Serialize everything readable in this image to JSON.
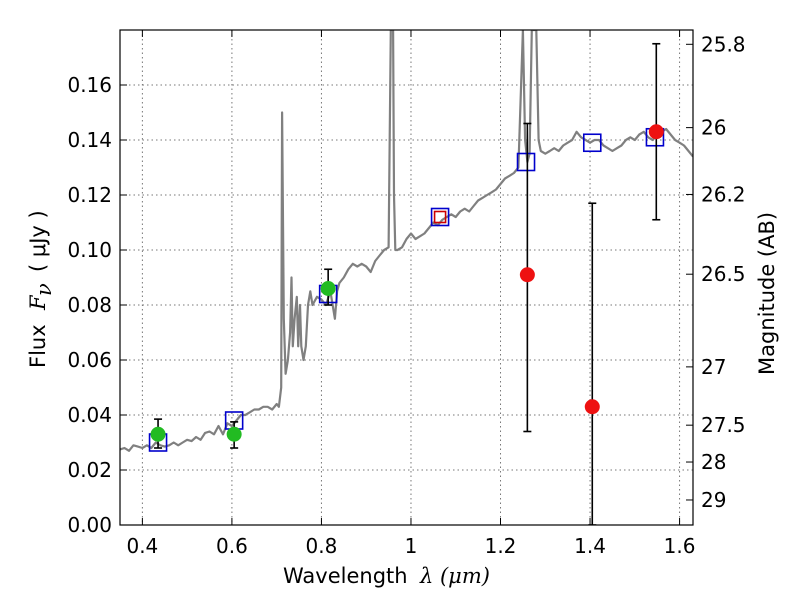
{
  "chart_data": {
    "type": "scatter",
    "xlabel": "Wavelength",
    "xlabel_math": "λ (μm)",
    "ylabel": "Flux",
    "ylabel_math": "F",
    "ylabel_sub": "ν",
    "ylabel_unit": "( μJy )",
    "y2label": "Magnitude (AB)",
    "xlim": [
      0.35,
      1.63
    ],
    "ylim": [
      0.0,
      0.18
    ],
    "grid": true,
    "xticks": [
      0.4,
      0.6,
      0.8,
      1.0,
      1.2,
      1.4,
      1.6
    ],
    "xtick_labels": [
      "0.4",
      "0.6",
      "0.8",
      "1",
      "1.2",
      "1.4",
      "1.6"
    ],
    "yticks": [
      0.0,
      0.02,
      0.04,
      0.06,
      0.08,
      0.1,
      0.12,
      0.14,
      0.16
    ],
    "ytick_labels": [
      "0.00",
      "0.02",
      "0.04",
      "0.06",
      "0.08",
      "0.10",
      "0.12",
      "0.14",
      "0.16"
    ],
    "mag_ticks": [
      {
        "label": "25.8",
        "flux": 0.1748
      },
      {
        "label": "26",
        "flux": 0.1445
      },
      {
        "label": "26.2",
        "flux": 0.1202
      },
      {
        "label": "26.5",
        "flux": 0.0912
      },
      {
        "label": "27",
        "flux": 0.0575
      },
      {
        "label": "27.5",
        "flux": 0.0363
      },
      {
        "label": "28",
        "flux": 0.0229
      },
      {
        "label": "29",
        "flux": 0.0091
      }
    ],
    "colors": {
      "spectrum": "#808080",
      "model_box": "#0000cc",
      "model_box_red": "#cc0000",
      "ground": "#22bb22",
      "space": "#ee1111",
      "errorbar": "#000000",
      "grid": "#777777"
    },
    "series": [
      {
        "kind": "spectrum",
        "points": [
          [
            0.35,
            0.0275
          ],
          [
            0.36,
            0.028
          ],
          [
            0.37,
            0.027
          ],
          [
            0.38,
            0.029
          ],
          [
            0.39,
            0.0285
          ],
          [
            0.4,
            0.028
          ],
          [
            0.41,
            0.029
          ],
          [
            0.42,
            0.028
          ],
          [
            0.43,
            0.03
          ],
          [
            0.44,
            0.029
          ],
          [
            0.45,
            0.0285
          ],
          [
            0.46,
            0.029
          ],
          [
            0.47,
            0.03
          ],
          [
            0.48,
            0.029
          ],
          [
            0.49,
            0.03
          ],
          [
            0.5,
            0.031
          ],
          [
            0.51,
            0.0305
          ],
          [
            0.52,
            0.032
          ],
          [
            0.53,
            0.031
          ],
          [
            0.54,
            0.0335
          ],
          [
            0.55,
            0.034
          ],
          [
            0.56,
            0.033
          ],
          [
            0.57,
            0.036
          ],
          [
            0.58,
            0.033
          ],
          [
            0.59,
            0.037
          ],
          [
            0.6,
            0.036
          ],
          [
            0.61,
            0.038
          ],
          [
            0.62,
            0.04
          ],
          [
            0.63,
            0.04
          ],
          [
            0.64,
            0.041
          ],
          [
            0.65,
            0.042
          ],
          [
            0.66,
            0.042
          ],
          [
            0.67,
            0.043
          ],
          [
            0.68,
            0.043
          ],
          [
            0.69,
            0.042
          ],
          [
            0.7,
            0.044
          ],
          [
            0.705,
            0.043
          ],
          [
            0.71,
            0.05
          ],
          [
            0.712,
            0.15
          ],
          [
            0.716,
            0.075
          ],
          [
            0.72,
            0.055
          ],
          [
            0.725,
            0.06
          ],
          [
            0.73,
            0.07
          ],
          [
            0.733,
            0.09
          ],
          [
            0.736,
            0.065
          ],
          [
            0.74,
            0.075
          ],
          [
            0.745,
            0.083
          ],
          [
            0.748,
            0.065
          ],
          [
            0.752,
            0.08
          ],
          [
            0.755,
            0.065
          ],
          [
            0.76,
            0.06
          ],
          [
            0.765,
            0.065
          ],
          [
            0.77,
            0.08
          ],
          [
            0.775,
            0.085
          ],
          [
            0.78,
            0.08
          ],
          [
            0.79,
            0.083
          ],
          [
            0.8,
            0.082
          ],
          [
            0.81,
            0.08
          ],
          [
            0.82,
            0.085
          ],
          [
            0.83,
            0.075
          ],
          [
            0.835,
            0.085
          ],
          [
            0.84,
            0.088
          ],
          [
            0.85,
            0.09
          ],
          [
            0.86,
            0.093
          ],
          [
            0.87,
            0.095
          ],
          [
            0.88,
            0.094
          ],
          [
            0.89,
            0.095
          ],
          [
            0.9,
            0.094
          ],
          [
            0.91,
            0.092
          ],
          [
            0.92,
            0.096
          ],
          [
            0.93,
            0.098
          ],
          [
            0.94,
            0.1
          ],
          [
            0.95,
            0.101
          ],
          [
            0.955,
            0.18
          ],
          [
            0.96,
            0.18
          ],
          [
            0.962,
            0.12
          ],
          [
            0.965,
            0.1
          ],
          [
            0.97,
            0.1
          ],
          [
            0.98,
            0.101
          ],
          [
            0.99,
            0.104
          ],
          [
            1.0,
            0.106
          ],
          [
            1.01,
            0.104
          ],
          [
            1.02,
            0.105
          ],
          [
            1.03,
            0.106
          ],
          [
            1.04,
            0.108
          ],
          [
            1.05,
            0.11
          ],
          [
            1.06,
            0.109
          ],
          [
            1.07,
            0.111
          ],
          [
            1.08,
            0.112
          ],
          [
            1.09,
            0.113
          ],
          [
            1.1,
            0.112
          ],
          [
            1.11,
            0.114
          ],
          [
            1.12,
            0.115
          ],
          [
            1.13,
            0.114
          ],
          [
            1.14,
            0.116
          ],
          [
            1.15,
            0.118
          ],
          [
            1.16,
            0.119
          ],
          [
            1.17,
            0.12
          ],
          [
            1.18,
            0.121
          ],
          [
            1.19,
            0.122
          ],
          [
            1.2,
            0.124
          ],
          [
            1.21,
            0.126
          ],
          [
            1.22,
            0.127
          ],
          [
            1.23,
            0.128
          ],
          [
            1.24,
            0.13
          ],
          [
            1.25,
            0.18
          ],
          [
            1.255,
            0.14
          ],
          [
            1.26,
            0.132
          ],
          [
            1.265,
            0.135
          ],
          [
            1.27,
            0.18
          ],
          [
            1.28,
            0.18
          ],
          [
            1.285,
            0.14
          ],
          [
            1.29,
            0.136
          ],
          [
            1.3,
            0.135
          ],
          [
            1.31,
            0.136
          ],
          [
            1.32,
            0.137
          ],
          [
            1.33,
            0.136
          ],
          [
            1.34,
            0.138
          ],
          [
            1.35,
            0.139
          ],
          [
            1.36,
            0.14
          ],
          [
            1.37,
            0.143
          ],
          [
            1.38,
            0.141
          ],
          [
            1.39,
            0.14
          ],
          [
            1.4,
            0.139
          ],
          [
            1.41,
            0.14
          ],
          [
            1.42,
            0.14
          ],
          [
            1.43,
            0.138
          ],
          [
            1.44,
            0.137
          ],
          [
            1.45,
            0.136
          ],
          [
            1.46,
            0.137
          ],
          [
            1.47,
            0.138
          ],
          [
            1.48,
            0.14
          ],
          [
            1.49,
            0.141
          ],
          [
            1.5,
            0.14
          ],
          [
            1.51,
            0.142
          ],
          [
            1.52,
            0.143
          ],
          [
            1.53,
            0.141
          ],
          [
            1.54,
            0.14
          ],
          [
            1.55,
            0.142
          ],
          [
            1.56,
            0.143
          ],
          [
            1.57,
            0.144
          ],
          [
            1.58,
            0.142
          ],
          [
            1.59,
            0.14
          ],
          [
            1.6,
            0.139
          ],
          [
            1.61,
            0.138
          ],
          [
            1.62,
            0.136
          ],
          [
            1.63,
            0.134
          ]
        ]
      },
      {
        "kind": "model_boxes",
        "points": [
          {
            "x": 0.435,
            "y": 0.03,
            "color": "blue"
          },
          {
            "x": 0.605,
            "y": 0.038,
            "color": "blue"
          },
          {
            "x": 0.815,
            "y": 0.084,
            "color": "blue"
          },
          {
            "x": 1.065,
            "y": 0.112,
            "color": "blue"
          },
          {
            "x": 1.065,
            "y": 0.112,
            "color": "red",
            "inner": true
          },
          {
            "x": 1.257,
            "y": 0.132,
            "color": "blue"
          },
          {
            "x": 1.405,
            "y": 0.139,
            "color": "blue"
          },
          {
            "x": 1.545,
            "y": 0.141,
            "color": "blue"
          }
        ]
      },
      {
        "kind": "ground_points",
        "points": [
          {
            "x": 0.435,
            "y": 0.033,
            "err": [
              0.028,
              0.0385
            ]
          },
          {
            "x": 0.605,
            "y": 0.033,
            "err": [
              0.028,
              0.0375
            ]
          },
          {
            "x": 0.815,
            "y": 0.086,
            "err": [
              0.08,
              0.093
            ]
          }
        ]
      },
      {
        "kind": "space_points",
        "points": [
          {
            "x": 1.26,
            "y": 0.091,
            "err": [
              0.034,
              0.146
            ]
          },
          {
            "x": 1.405,
            "y": 0.043,
            "err": [
              0.0,
              0.117
            ]
          },
          {
            "x": 1.548,
            "y": 0.143,
            "err": [
              0.111,
              0.175
            ]
          }
        ]
      }
    ]
  }
}
